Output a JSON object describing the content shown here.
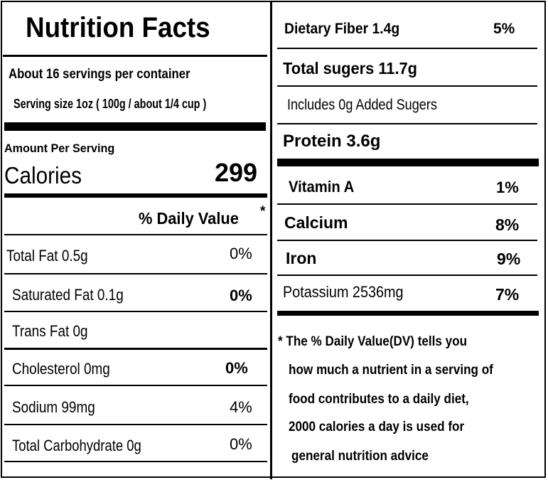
{
  "left": {
    "title": "Nutrition Facts",
    "servings_per_container": "About 16 servings per container",
    "serving_size": "Serving size 1oz ( 100g / about 1/4 cup )",
    "amount_per_serving": "Amount Per Serving",
    "calories_label": "Calories",
    "calories_value": "299",
    "daily_value_header": "% Daily Value",
    "daily_value_asterisk": "*",
    "rows": [
      {
        "label": "Total Fat  0.5g",
        "dv": "0%"
      },
      {
        "label": "Saturated Fat 0.1g",
        "dv": "0%"
      },
      {
        "label": "Trans Fat 0g",
        "dv": ""
      },
      {
        "label": "Cholesterol  0mg",
        "dv": "0%"
      },
      {
        "label": "Sodium  99mg",
        "dv": "4%"
      },
      {
        "label": "Total Carbohydrate 0g",
        "dv": "0%"
      }
    ]
  },
  "right": {
    "fiber": {
      "label": "Dietary Fiber  1.4g",
      "dv": "5%"
    },
    "sugars": "Total sugers 11.7g",
    "added_sugars": "Includes 0g Added Sugers",
    "protein": "Protein 3.6g",
    "vitamins": [
      {
        "label": "Vitamin A",
        "dv": "1%"
      },
      {
        "label": "Calcium",
        "dv": "8%"
      },
      {
        "label": "Iron",
        "dv": "9%"
      },
      {
        "label": "Potassium  2536mg",
        "dv": "7%"
      }
    ],
    "footnote": [
      "* The % Daily Value(DV)  tells you",
      "how much a nutrient in a serving of",
      "food contributes to a daily diet,",
      "2000 calories a day is used for",
      "general nutrition advice"
    ]
  }
}
